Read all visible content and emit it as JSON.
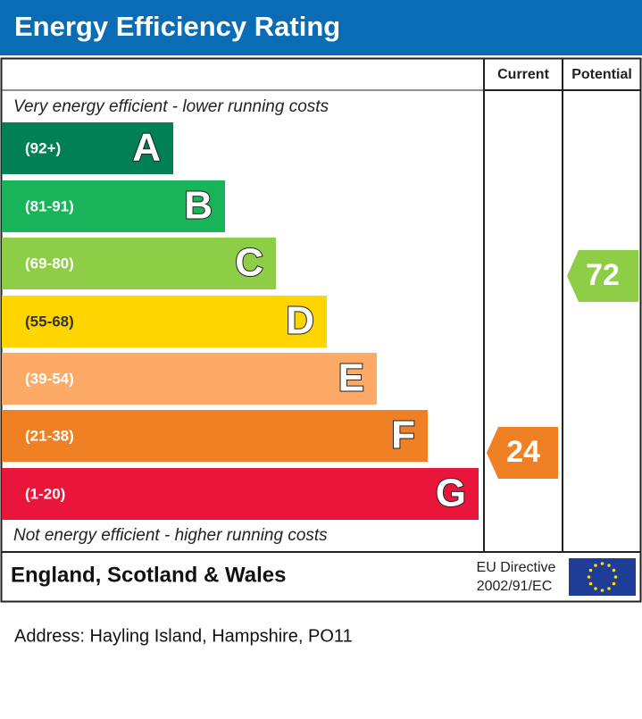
{
  "header": {
    "title": "Energy Efficiency Rating"
  },
  "columns": [
    "Current",
    "Potential"
  ],
  "top_note": "Very energy efficient - lower running costs",
  "bands": [
    {
      "range": "(92+)",
      "letter": "A",
      "color": "#008054"
    },
    {
      "range": "(81-91)",
      "letter": "B",
      "color": "#19b459"
    },
    {
      "range": "(69-80)",
      "letter": "C",
      "color": "#8dce46"
    },
    {
      "range": "(55-68)",
      "letter": "D",
      "color": "#ffd500"
    },
    {
      "range": "(39-54)",
      "letter": "E",
      "color": "#fcaa65"
    },
    {
      "range": "(21-38)",
      "letter": "F",
      "color": "#ef8023"
    },
    {
      "range": "(1-20)",
      "letter": "G",
      "color": "#e9153b"
    }
  ],
  "bottom_note": "Not energy efficient - higher running costs",
  "current": {
    "value": 24,
    "color": "#ef8023"
  },
  "potential": {
    "value": 72,
    "color": "#8dce46"
  },
  "footer": {
    "region": "England, Scotland & Wales",
    "directive": "EU Directive",
    "directive_code": "2002/91/EC"
  },
  "address": "Address: Hayling Island, Hampshire, PO11"
}
